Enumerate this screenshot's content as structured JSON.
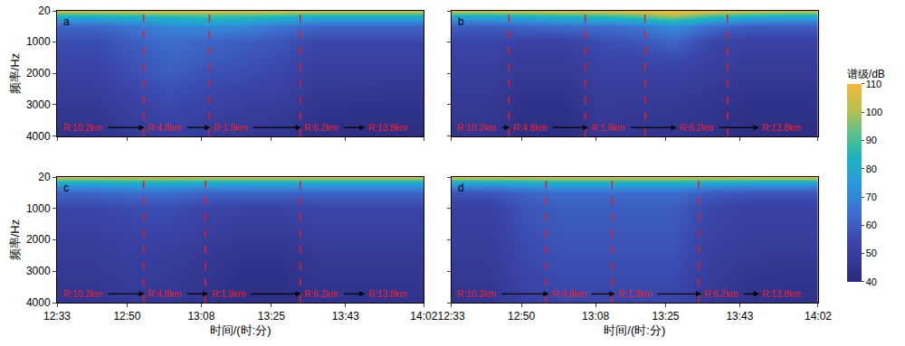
{
  "chart_data": [
    {
      "type": "heatmap",
      "title": "a",
      "ylabel": "频率/Hz",
      "tick_labels": "y",
      "grid": false,
      "x": [
        753,
        762,
        771,
        780,
        789,
        798,
        807,
        816,
        825,
        834,
        842
      ],
      "y": [
        20,
        200,
        500,
        1000,
        1500,
        2000,
        2500,
        3000,
        3500,
        4000
      ],
      "z": [
        [
          104,
          104,
          105,
          106,
          106,
          106,
          106,
          104,
          104,
          104,
          104
        ],
        [
          82,
          82,
          84,
          86,
          88,
          87,
          85,
          82,
          82,
          82,
          82
        ],
        [
          62,
          62,
          66,
          70,
          72,
          70,
          66,
          62,
          62,
          62,
          62
        ],
        [
          56,
          56,
          60,
          64,
          62,
          60,
          58,
          54,
          54,
          54,
          54
        ],
        [
          54,
          54,
          58,
          62,
          60,
          58,
          56,
          52,
          52,
          52,
          52
        ],
        [
          52,
          52,
          56,
          60,
          57,
          56,
          54,
          50,
          50,
          50,
          50
        ],
        [
          50,
          50,
          54,
          57,
          55,
          53,
          52,
          48,
          48,
          47,
          47
        ],
        [
          48,
          48,
          52,
          55,
          53,
          51,
          50,
          46,
          45,
          45,
          45
        ],
        [
          46,
          46,
          50,
          53,
          51,
          49,
          48,
          44,
          43,
          43,
          43
        ],
        [
          44,
          44,
          48,
          51,
          49,
          47,
          46,
          42,
          42,
          42,
          42
        ]
      ],
      "xlim": [
        753,
        842
      ],
      "ylim": [
        4000,
        20
      ],
      "xticks": [
        {
          "value": 753,
          "label": "12:33"
        },
        {
          "value": 770,
          "label": "12:50"
        },
        {
          "value": 788,
          "label": "13:08"
        },
        {
          "value": 805,
          "label": "13:25"
        },
        {
          "value": 823,
          "label": "13:43"
        },
        {
          "value": 842,
          "label": "14:02"
        }
      ],
      "yticks": [
        20,
        1000,
        2000,
        3000,
        4000
      ],
      "boundaries": [
        774,
        790,
        812
      ],
      "annotations": [
        {
          "text": "R:10.2km",
          "x": 754
        },
        {
          "text": "R:4.8km",
          "x": 774.5
        },
        {
          "text": "R:1.9km",
          "x": 790.5
        },
        {
          "text": "R:6.2km",
          "x": 812.5
        },
        {
          "text": "R:13.8km",
          "x": 828
        }
      ],
      "colorbar": {
        "title": "谱级/dB",
        "range": [
          40,
          110
        ],
        "ticks": [
          40,
          50,
          60,
          70,
          80,
          90,
          100,
          110
        ]
      }
    },
    {
      "type": "heatmap",
      "title": "b",
      "tick_labels": false,
      "grid": false,
      "x": [
        753,
        762,
        771,
        780,
        789,
        798,
        807,
        816,
        825,
        834,
        842
      ],
      "y": [
        20,
        200,
        500,
        1000,
        1500,
        2000,
        2500,
        3000,
        3500,
        4000
      ],
      "z": [
        [
          104,
          104,
          105,
          106,
          106,
          108,
          110,
          108,
          105,
          104,
          104
        ],
        [
          80,
          80,
          82,
          84,
          86,
          90,
          98,
          88,
          82,
          80,
          80
        ],
        [
          60,
          60,
          62,
          64,
          64,
          66,
          72,
          64,
          60,
          60,
          60
        ],
        [
          54,
          54,
          52,
          52,
          56,
          58,
          62,
          54,
          52,
          52,
          52
        ],
        [
          52,
          52,
          50,
          50,
          54,
          54,
          56,
          52,
          50,
          50,
          50
        ],
        [
          50,
          50,
          48,
          48,
          52,
          52,
          52,
          50,
          48,
          48,
          48
        ],
        [
          49,
          49,
          46,
          46,
          50,
          50,
          50,
          48,
          46,
          46,
          46
        ],
        [
          48,
          48,
          44,
          44,
          49,
          48,
          48,
          46,
          44,
          44,
          44
        ],
        [
          47,
          47,
          43,
          43,
          48,
          47,
          47,
          45,
          43,
          43,
          43
        ],
        [
          46,
          46,
          42,
          42,
          47,
          46,
          46,
          44,
          42,
          42,
          42
        ]
      ],
      "xlim": [
        753,
        842
      ],
      "ylim": [
        4000,
        20
      ],
      "xticks": [
        {
          "value": 753,
          "label": "12:33"
        },
        {
          "value": 770,
          "label": "12:50"
        },
        {
          "value": 788,
          "label": "13:08"
        },
        {
          "value": 805,
          "label": "13:25"
        },
        {
          "value": 823,
          "label": "13:43"
        },
        {
          "value": 842,
          "label": "14:02"
        }
      ],
      "yticks": [
        20,
        1000,
        2000,
        3000,
        4000
      ],
      "boundaries": [
        767,
        785.5,
        800,
        820
      ],
      "annotations": [
        {
          "text": "R:10.2km",
          "x": 754
        },
        {
          "text": "R:4.8km",
          "x": 767.5
        },
        {
          "text": "R:1.9km",
          "x": 786.5
        },
        {
          "text": "R:6.2km",
          "x": 808
        },
        {
          "text": "R:13.8km",
          "x": 828
        }
      ]
    },
    {
      "type": "heatmap",
      "title": "c",
      "xlabel": "时间/(时:分)",
      "ylabel": "频率/Hz",
      "tick_labels": true,
      "grid": false,
      "x": [
        753,
        762,
        771,
        780,
        789,
        798,
        807,
        816,
        825,
        834,
        842
      ],
      "y": [
        20,
        200,
        500,
        1000,
        1500,
        2000,
        2500,
        3000,
        3500,
        4000
      ],
      "z": [
        [
          104,
          104,
          104,
          104,
          104,
          104,
          104,
          104,
          104,
          104,
          104
        ],
        [
          80,
          80,
          82,
          82,
          80,
          80,
          80,
          80,
          80,
          80,
          80
        ],
        [
          62,
          62,
          64,
          64,
          62,
          62,
          62,
          62,
          62,
          62,
          62
        ],
        [
          54,
          54,
          56,
          56,
          54,
          53,
          53,
          54,
          54,
          54,
          54
        ],
        [
          52,
          52,
          54,
          54,
          52,
          50,
          50,
          52,
          52,
          52,
          52
        ],
        [
          50,
          50,
          52,
          52,
          50,
          48,
          48,
          50,
          50,
          50,
          50
        ],
        [
          49,
          49,
          51,
          50,
          48,
          46,
          46,
          48,
          48,
          48,
          48
        ],
        [
          48,
          48,
          50,
          49,
          47,
          44,
          44,
          47,
          47,
          47,
          47
        ],
        [
          47,
          47,
          49,
          48,
          46,
          43,
          43,
          46,
          46,
          46,
          46
        ],
        [
          46,
          46,
          48,
          47,
          45,
          42,
          42,
          45,
          45,
          45,
          45
        ]
      ],
      "xlim": [
        753,
        842
      ],
      "ylim": [
        4000,
        20
      ],
      "xticks": [
        {
          "value": 753,
          "label": "12:33"
        },
        {
          "value": 770,
          "label": "12:50"
        },
        {
          "value": 788,
          "label": "13:08"
        },
        {
          "value": 805,
          "label": "13:25"
        },
        {
          "value": 823,
          "label": "13:43"
        },
        {
          "value": 842,
          "label": "14:02"
        }
      ],
      "yticks": [
        20,
        1000,
        2000,
        3000,
        4000
      ],
      "boundaries": [
        774,
        789,
        812
      ],
      "annotations": [
        {
          "text": "R:10.2km",
          "x": 754
        },
        {
          "text": "R:4.8km",
          "x": 774.5
        },
        {
          "text": "R:1.9km",
          "x": 790
        },
        {
          "text": "R:6.2km",
          "x": 812.5
        },
        {
          "text": "R:13.8km",
          "x": 828
        }
      ]
    },
    {
      "type": "heatmap",
      "title": "d",
      "xlabel": "时间/(时:分)",
      "tick_labels": "x",
      "grid": false,
      "x": [
        753,
        762,
        771,
        780,
        789,
        798,
        807,
        816,
        825,
        834,
        842
      ],
      "y": [
        20,
        200,
        500,
        1000,
        1500,
        2000,
        2500,
        3000,
        3500,
        4000
      ],
      "z": [
        [
          105,
          105,
          105,
          105,
          105,
          105,
          105,
          105,
          105,
          105,
          105
        ],
        [
          78,
          78,
          80,
          82,
          82,
          82,
          82,
          80,
          78,
          78,
          78
        ],
        [
          58,
          58,
          62,
          64,
          64,
          64,
          64,
          60,
          58,
          58,
          58
        ],
        [
          52,
          52,
          58,
          60,
          60,
          60,
          60,
          54,
          52,
          52,
          52
        ],
        [
          51,
          51,
          57,
          59,
          59,
          59,
          59,
          53,
          51,
          51,
          51
        ],
        [
          50,
          50,
          56,
          58,
          58,
          58,
          58,
          52,
          50,
          50,
          50
        ],
        [
          49,
          49,
          55,
          57,
          57,
          57,
          57,
          51,
          49,
          48,
          48
        ],
        [
          48,
          48,
          54,
          56,
          56,
          56,
          56,
          50,
          47,
          46,
          46
        ],
        [
          47,
          47,
          53,
          55,
          55,
          55,
          55,
          49,
          46,
          45,
          45
        ],
        [
          46,
          46,
          52,
          54,
          54,
          54,
          54,
          48,
          45,
          44,
          44
        ]
      ],
      "xlim": [
        753,
        842
      ],
      "ylim": [
        4000,
        20
      ],
      "xticks": [
        {
          "value": 753,
          "label": "12:33"
        },
        {
          "value": 770,
          "label": "12:50"
        },
        {
          "value": 788,
          "label": "13:08"
        },
        {
          "value": 805,
          "label": "13:25"
        },
        {
          "value": 823,
          "label": "13:43"
        },
        {
          "value": 842,
          "label": "14:02"
        }
      ],
      "yticks": [
        20,
        1000,
        2000,
        3000,
        4000
      ],
      "boundaries": [
        776,
        792,
        813
      ],
      "annotations": [
        {
          "text": "R:10.2km",
          "x": 754
        },
        {
          "text": "R:4.8km",
          "x": 777
        },
        {
          "text": "R:1.9km",
          "x": 793
        },
        {
          "text": "R:6.2km",
          "x": 814
        },
        {
          "text": "R:13.8km",
          "x": 828
        }
      ]
    }
  ]
}
